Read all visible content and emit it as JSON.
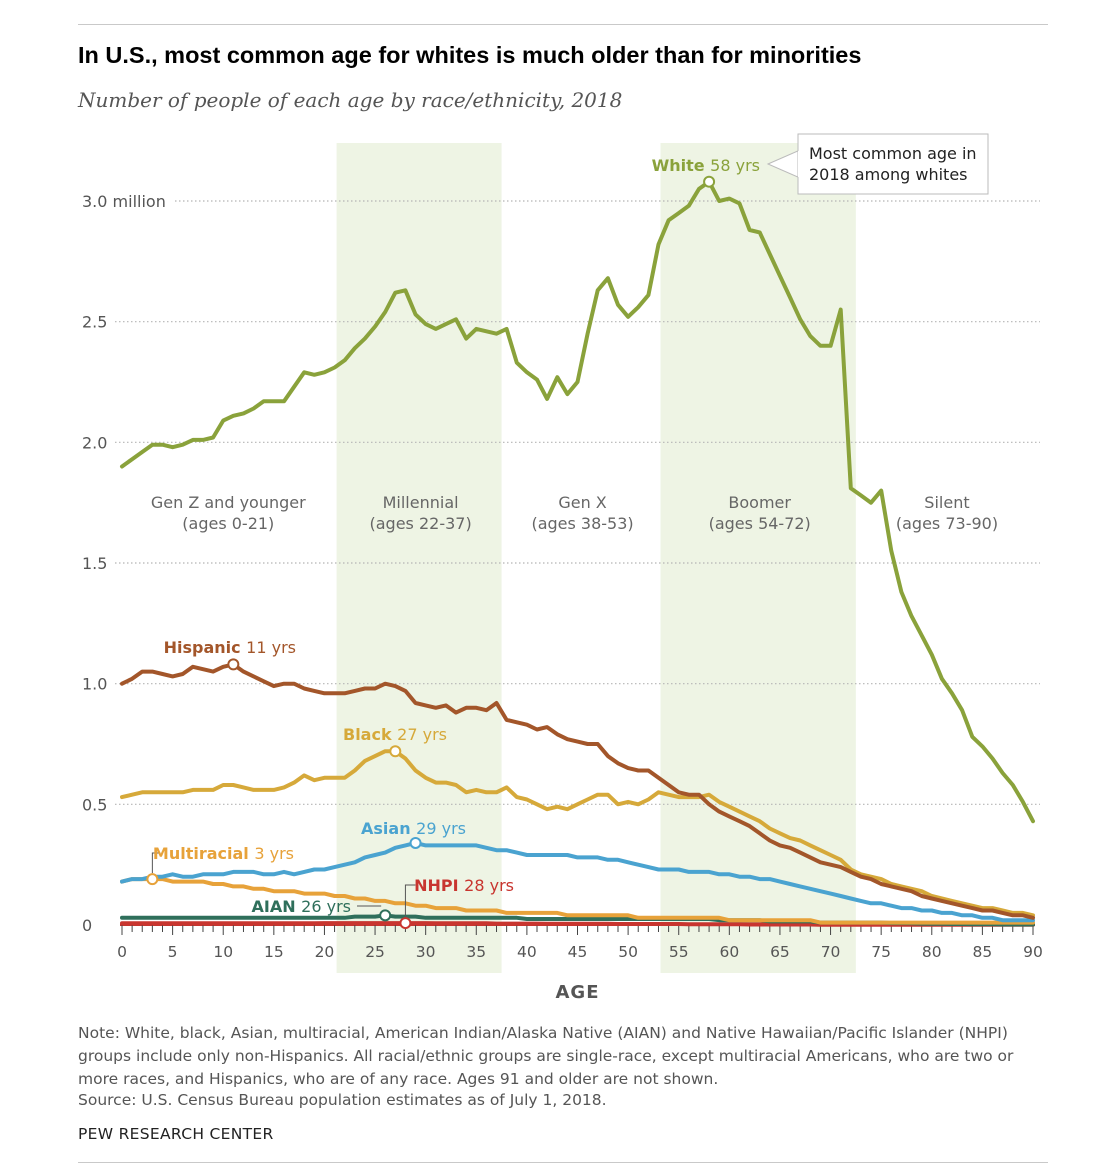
{
  "header": {
    "title": "In U.S., most common age for whites is much older than for minorities",
    "subtitle": "Number of people of each age by race/ethnicity, 2018"
  },
  "footer": {
    "note": "Note: White, black, Asian, multiracial, American Indian/Alaska Native (AIAN) and Native Hawaiian/Pacific Islander (NHPI) groups include only non-Hispanics. All racial/ethnic groups are single-race, except multiracial Americans, who are two or more races, and Hispanics, who are of any race. Ages 91 and older are not shown.",
    "source": "Source: U.S. Census Bureau population estimates as of July 1, 2018.",
    "brand": "PEW RESEARCH CENTER"
  },
  "colors": {
    "white": "#8aa23b",
    "hispanic": "#a3562a",
    "black": "#d6a93a",
    "asian": "#4aa3d0",
    "multiracial": "#e7a23a",
    "aian": "#2f6f5b",
    "nhpi": "#c8352f",
    "band": "#eef4e4",
    "grid": "#b5b5b5",
    "axis": "#c8352f"
  },
  "chart_data": {
    "type": "line",
    "xlabel": "AGE",
    "ylabel": "",
    "xlim": [
      0,
      90
    ],
    "ylim": [
      0,
      3.2
    ],
    "y_ticks": [
      {
        "value": 0,
        "label": "0"
      },
      {
        "value": 0.5,
        "label": "0.5"
      },
      {
        "value": 1.0,
        "label": "1.0"
      },
      {
        "value": 1.5,
        "label": "1.5"
      },
      {
        "value": 2.0,
        "label": "2.0"
      },
      {
        "value": 2.5,
        "label": "2.5"
      },
      {
        "value": 3.0,
        "label": "3.0 million"
      }
    ],
    "x_tick_labels": [
      "0",
      "5",
      "10",
      "15",
      "20",
      "25",
      "30",
      "35",
      "40",
      "45",
      "50",
      "55",
      "60",
      "65",
      "70",
      "75",
      "80",
      "85",
      "90"
    ],
    "grid": "horizontal dotted",
    "generations": [
      {
        "name": "Gen Z and younger",
        "range_label": "(ages 0-21)",
        "start": 0,
        "end": 21,
        "shaded": false
      },
      {
        "name": "Millennial",
        "range_label": "(ages 22-37)",
        "start": 22,
        "end": 37,
        "shaded": true
      },
      {
        "name": "Gen X",
        "range_label": "(ages 38-53)",
        "start": 38,
        "end": 53,
        "shaded": false
      },
      {
        "name": "Boomer",
        "range_label": "(ages 54-72)",
        "start": 54,
        "end": 72,
        "shaded": true
      },
      {
        "name": "Silent",
        "range_label": "(ages 73-90)",
        "start": 73,
        "end": 90,
        "shaded": false
      }
    ],
    "annotation": {
      "text_line1": "Most common age in",
      "text_line2": "2018 among whites"
    },
    "series": [
      {
        "name": "White",
        "key": "white",
        "peak_age": 58,
        "peak_label": "58 yrs",
        "values": [
          1.9,
          1.93,
          1.96,
          1.99,
          1.99,
          1.98,
          1.99,
          2.01,
          2.01,
          2.02,
          2.09,
          2.11,
          2.12,
          2.14,
          2.17,
          2.17,
          2.17,
          2.23,
          2.29,
          2.28,
          2.29,
          2.31,
          2.34,
          2.39,
          2.43,
          2.48,
          2.54,
          2.62,
          2.63,
          2.53,
          2.49,
          2.47,
          2.49,
          2.51,
          2.43,
          2.47,
          2.46,
          2.45,
          2.47,
          2.33,
          2.29,
          2.26,
          2.18,
          2.27,
          2.2,
          2.25,
          2.45,
          2.63,
          2.68,
          2.57,
          2.52,
          2.56,
          2.61,
          2.82,
          2.92,
          2.95,
          2.98,
          3.05,
          3.08,
          3.0,
          3.01,
          2.99,
          2.88,
          2.87,
          2.78,
          2.69,
          2.6,
          2.51,
          2.44,
          2.4,
          2.4,
          2.55,
          1.81,
          1.78,
          1.75,
          1.8,
          1.55,
          1.38,
          1.28,
          1.2,
          1.12,
          1.02,
          0.96,
          0.89,
          0.78,
          0.74,
          0.69,
          0.63,
          0.58,
          0.51,
          0.43
        ]
      },
      {
        "name": "Hispanic",
        "key": "hispanic",
        "peak_age": 11,
        "peak_label": "11 yrs",
        "values": [
          1.0,
          1.02,
          1.05,
          1.05,
          1.04,
          1.03,
          1.04,
          1.07,
          1.06,
          1.05,
          1.07,
          1.08,
          1.05,
          1.03,
          1.01,
          0.99,
          1.0,
          1.0,
          0.98,
          0.97,
          0.96,
          0.96,
          0.96,
          0.97,
          0.98,
          0.98,
          1.0,
          0.99,
          0.97,
          0.92,
          0.91,
          0.9,
          0.91,
          0.88,
          0.9,
          0.9,
          0.89,
          0.92,
          0.85,
          0.84,
          0.83,
          0.81,
          0.82,
          0.79,
          0.77,
          0.76,
          0.75,
          0.75,
          0.7,
          0.67,
          0.65,
          0.64,
          0.64,
          0.61,
          0.58,
          0.55,
          0.54,
          0.54,
          0.5,
          0.47,
          0.45,
          0.43,
          0.41,
          0.38,
          0.35,
          0.33,
          0.32,
          0.3,
          0.28,
          0.26,
          0.25,
          0.24,
          0.22,
          0.2,
          0.19,
          0.17,
          0.16,
          0.15,
          0.14,
          0.12,
          0.11,
          0.1,
          0.09,
          0.08,
          0.07,
          0.06,
          0.06,
          0.05,
          0.04,
          0.04,
          0.03
        ]
      },
      {
        "name": "Black",
        "key": "black",
        "peak_age": 27,
        "peak_label": "27 yrs",
        "values": [
          0.53,
          0.54,
          0.55,
          0.55,
          0.55,
          0.55,
          0.55,
          0.56,
          0.56,
          0.56,
          0.58,
          0.58,
          0.57,
          0.56,
          0.56,
          0.56,
          0.57,
          0.59,
          0.62,
          0.6,
          0.61,
          0.61,
          0.61,
          0.64,
          0.68,
          0.7,
          0.72,
          0.72,
          0.69,
          0.64,
          0.61,
          0.59,
          0.59,
          0.58,
          0.55,
          0.56,
          0.55,
          0.55,
          0.57,
          0.53,
          0.52,
          0.5,
          0.48,
          0.49,
          0.48,
          0.5,
          0.52,
          0.54,
          0.54,
          0.5,
          0.51,
          0.5,
          0.52,
          0.55,
          0.54,
          0.53,
          0.53,
          0.53,
          0.54,
          0.51,
          0.49,
          0.47,
          0.45,
          0.43,
          0.4,
          0.38,
          0.36,
          0.35,
          0.33,
          0.31,
          0.29,
          0.27,
          0.23,
          0.21,
          0.2,
          0.19,
          0.17,
          0.16,
          0.15,
          0.14,
          0.12,
          0.11,
          0.1,
          0.09,
          0.08,
          0.07,
          0.07,
          0.06,
          0.05,
          0.05,
          0.04
        ]
      },
      {
        "name": "Asian",
        "key": "asian",
        "peak_age": 29,
        "peak_label": "29 yrs",
        "values": [
          0.18,
          0.19,
          0.19,
          0.2,
          0.2,
          0.21,
          0.2,
          0.2,
          0.21,
          0.21,
          0.21,
          0.22,
          0.22,
          0.22,
          0.21,
          0.21,
          0.22,
          0.21,
          0.22,
          0.23,
          0.23,
          0.24,
          0.25,
          0.26,
          0.28,
          0.29,
          0.3,
          0.32,
          0.33,
          0.34,
          0.33,
          0.33,
          0.33,
          0.33,
          0.33,
          0.33,
          0.32,
          0.31,
          0.31,
          0.3,
          0.29,
          0.29,
          0.29,
          0.29,
          0.29,
          0.28,
          0.28,
          0.28,
          0.27,
          0.27,
          0.26,
          0.25,
          0.24,
          0.23,
          0.23,
          0.23,
          0.22,
          0.22,
          0.22,
          0.21,
          0.21,
          0.2,
          0.2,
          0.19,
          0.19,
          0.18,
          0.17,
          0.16,
          0.15,
          0.14,
          0.13,
          0.12,
          0.11,
          0.1,
          0.09,
          0.09,
          0.08,
          0.07,
          0.07,
          0.06,
          0.06,
          0.05,
          0.05,
          0.04,
          0.04,
          0.03,
          0.03,
          0.02,
          0.02,
          0.02,
          0.02
        ]
      },
      {
        "name": "Multiracial",
        "key": "multiracial",
        "peak_age": 3,
        "peak_label": "3 yrs",
        "values": [
          0.18,
          0.19,
          0.19,
          0.19,
          0.19,
          0.18,
          0.18,
          0.18,
          0.18,
          0.17,
          0.17,
          0.16,
          0.16,
          0.15,
          0.15,
          0.14,
          0.14,
          0.14,
          0.13,
          0.13,
          0.13,
          0.12,
          0.12,
          0.11,
          0.11,
          0.1,
          0.1,
          0.09,
          0.09,
          0.08,
          0.08,
          0.07,
          0.07,
          0.07,
          0.06,
          0.06,
          0.06,
          0.06,
          0.05,
          0.05,
          0.05,
          0.05,
          0.05,
          0.05,
          0.04,
          0.04,
          0.04,
          0.04,
          0.04,
          0.04,
          0.04,
          0.03,
          0.03,
          0.03,
          0.03,
          0.03,
          0.03,
          0.03,
          0.03,
          0.03,
          0.02,
          0.02,
          0.02,
          0.02,
          0.02,
          0.02,
          0.02,
          0.02,
          0.02,
          0.01,
          0.01,
          0.01,
          0.01,
          0.01,
          0.01,
          0.01,
          0.01,
          0.01,
          0.01,
          0.01,
          0.01,
          0.01,
          0.01,
          0.01,
          0.01,
          0.01,
          0.01,
          0.01,
          0.01,
          0.01,
          0.01
        ]
      },
      {
        "name": "AIAN",
        "key": "aian",
        "peak_age": 26,
        "peak_label": "26 yrs",
        "values": [
          0.03,
          0.03,
          0.03,
          0.03,
          0.03,
          0.03,
          0.03,
          0.03,
          0.03,
          0.03,
          0.03,
          0.03,
          0.03,
          0.03,
          0.03,
          0.03,
          0.03,
          0.03,
          0.03,
          0.03,
          0.03,
          0.03,
          0.03,
          0.035,
          0.035,
          0.035,
          0.04,
          0.035,
          0.035,
          0.035,
          0.03,
          0.03,
          0.03,
          0.03,
          0.03,
          0.03,
          0.03,
          0.03,
          0.03,
          0.03,
          0.025,
          0.025,
          0.025,
          0.025,
          0.025,
          0.025,
          0.025,
          0.025,
          0.025,
          0.025,
          0.025,
          0.025,
          0.025,
          0.025,
          0.025,
          0.025,
          0.025,
          0.025,
          0.025,
          0.02,
          0.02,
          0.02,
          0.02,
          0.02,
          0.015,
          0.015,
          0.015,
          0.015,
          0.015,
          0.01,
          0.01,
          0.01,
          0.01,
          0.01,
          0.01,
          0.01,
          0.008,
          0.008,
          0.007,
          0.006,
          0.005,
          0.005,
          0.004,
          0.004,
          0.003,
          0.003,
          0.003,
          0.002,
          0.002,
          0.002,
          0.002
        ]
      },
      {
        "name": "NHPI",
        "key": "nhpi",
        "peak_age": 28,
        "peak_label": "28 yrs",
        "values": [
          0.007,
          0.007,
          0.007,
          0.007,
          0.007,
          0.007,
          0.007,
          0.007,
          0.007,
          0.007,
          0.007,
          0.007,
          0.007,
          0.007,
          0.007,
          0.007,
          0.007,
          0.007,
          0.007,
          0.007,
          0.008,
          0.008,
          0.008,
          0.008,
          0.008,
          0.008,
          0.008,
          0.008,
          0.008,
          0.008,
          0.008,
          0.007,
          0.007,
          0.007,
          0.007,
          0.007,
          0.007,
          0.006,
          0.006,
          0.006,
          0.006,
          0.006,
          0.005,
          0.005,
          0.005,
          0.005,
          0.005,
          0.005,
          0.005,
          0.004,
          0.004,
          0.004,
          0.004,
          0.004,
          0.004,
          0.004,
          0.003,
          0.003,
          0.003,
          0.003,
          0.003,
          0.003,
          0.002,
          0.002,
          0.002,
          0.002,
          0.002,
          0.002,
          0.002,
          0.001,
          0.001,
          0.001,
          0.001,
          0.001,
          0.001,
          0.001,
          0.001,
          0.001,
          0.001,
          0.001,
          0.001,
          0.001,
          0.001,
          0.001,
          0.001,
          0.001,
          0.001,
          0.001,
          0.001,
          0.001,
          0.001
        ]
      }
    ]
  }
}
